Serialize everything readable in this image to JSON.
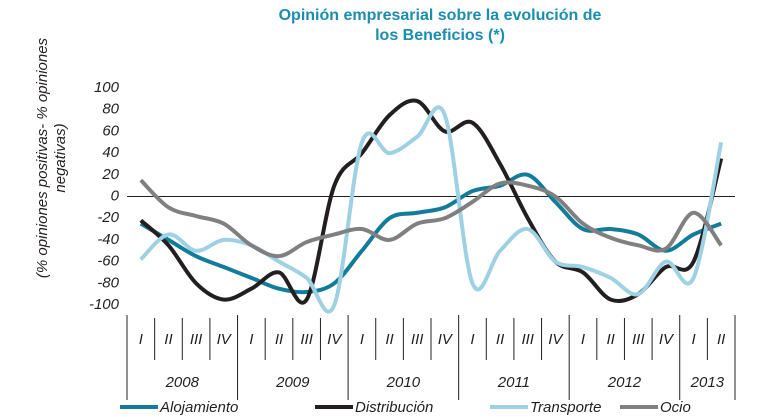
{
  "chart_data": {
    "type": "line",
    "title": "Opinión empresarial sobre la evolución de los Beneficios (*)",
    "y_label": "(% opiniones positivas- % opiniones negativas)",
    "categories": [
      "I",
      "II",
      "III",
      "IV",
      "I",
      "II",
      "III",
      "IV",
      "I",
      "II",
      "III",
      "IV",
      "I",
      "II",
      "III",
      "IV",
      "I",
      "II",
      "III",
      "IV",
      "I",
      "II"
    ],
    "groups": [
      {
        "name": "2008",
        "count": 4
      },
      {
        "name": "2009",
        "count": 4
      },
      {
        "name": "2010",
        "count": 4
      },
      {
        "name": "2011",
        "count": 4
      },
      {
        "name": "2012",
        "count": 4
      },
      {
        "name": "2013",
        "count": 2
      }
    ],
    "ylim": [
      -100,
      100
    ],
    "yticks": [
      -100,
      -80,
      -60,
      -40,
      -20,
      0,
      20,
      40,
      60,
      80,
      100
    ],
    "legend": "bottom",
    "series": [
      {
        "name": "Alojamiento",
        "color": "#127c9a",
        "values": [
          -25,
          -40,
          -55,
          -65,
          -75,
          -85,
          -88,
          -80,
          -50,
          -20,
          -15,
          -10,
          5,
          10,
          20,
          -5,
          -30,
          -30,
          -35,
          -50,
          -35,
          -25
        ]
      },
      {
        "name": "Distribución",
        "color": "#231f20",
        "values": [
          -22,
          -45,
          -80,
          -95,
          -85,
          -70,
          -95,
          10,
          40,
          75,
          88,
          60,
          68,
          30,
          -20,
          -60,
          -70,
          -95,
          -90,
          -65,
          -60,
          35
        ]
      },
      {
        "name": "Transporte",
        "color": "#9fd1e4",
        "values": [
          -58,
          -35,
          -50,
          -40,
          -45,
          -60,
          -75,
          -100,
          50,
          40,
          55,
          75,
          -80,
          -50,
          -30,
          -60,
          -65,
          -75,
          -90,
          -60,
          -75,
          50
        ]
      },
      {
        "name": "Ocio",
        "color": "#808080",
        "values": [
          15,
          -10,
          -18,
          -25,
          -45,
          -55,
          -42,
          -35,
          -30,
          -40,
          -25,
          -20,
          -5,
          12,
          10,
          0,
          -25,
          -38,
          -45,
          -48,
          -15,
          -45
        ]
      }
    ]
  }
}
